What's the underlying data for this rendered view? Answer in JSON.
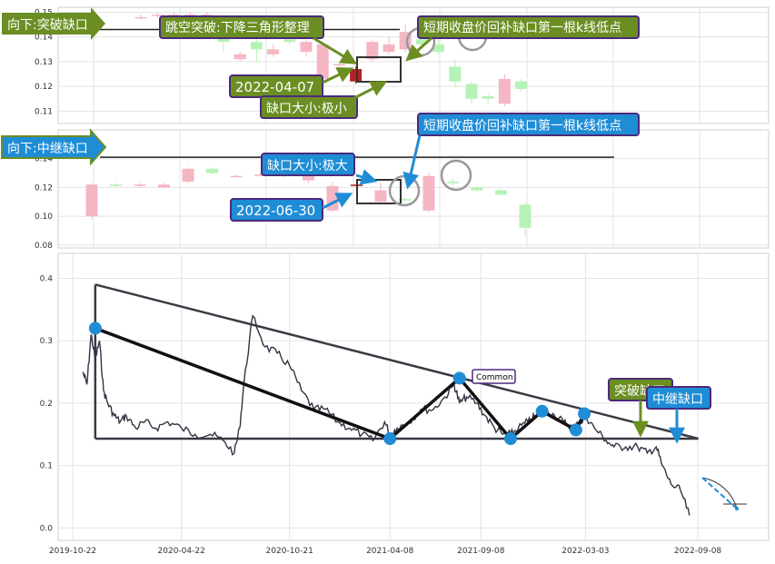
{
  "colors": {
    "up": "#f4b6c2",
    "down": "#b6f2b6",
    "gap_candle": "#b22222",
    "green_label": "#6b8e23",
    "blue_label": "#1f8dd6",
    "label_border": "#4b2a7a",
    "price_line": "#333344",
    "triangle": "#3a3a44",
    "pivot": "#1f8dd6"
  },
  "panels": {
    "top": {
      "banner": "向下:突破缺口",
      "annotations": {
        "pattern": "跳空突破:下降三角形整理",
        "date": "2022-04-07",
        "gap_size": "缺口大小:极小",
        "fill": "短期收盘价回补缺口第一根k线低点"
      }
    },
    "middle": {
      "banner": "向下:中继缺口",
      "annotations": {
        "gap_size": "缺口大小:极大",
        "date": "2022-06-30",
        "fill": "短期收盘价回补缺口第一根k线低点"
      }
    },
    "main": {
      "annotations": {
        "common": "Common",
        "breakaway": "突破缺口",
        "runaway": "中继缺口"
      }
    }
  },
  "chart_data": [
    {
      "type": "candlestick",
      "id": "top",
      "ylim": [
        0.105,
        0.152
      ],
      "yticks": [
        0.11,
        0.12,
        0.13,
        0.14,
        0.15
      ],
      "reference_line": 0.143,
      "candles": [
        {
          "o": 0.148,
          "c": 0.148,
          "h": 0.149,
          "l": 0.147
        },
        {
          "o": 0.149,
          "c": 0.149,
          "h": 0.15,
          "l": 0.148
        },
        {
          "o": 0.149,
          "c": 0.149,
          "h": 0.15,
          "l": 0.148
        },
        {
          "o": 0.149,
          "c": 0.149,
          "h": 0.15,
          "l": 0.148
        },
        {
          "o": 0.149,
          "c": 0.149,
          "h": 0.15,
          "l": 0.148
        },
        {
          "o": 0.146,
          "c": 0.138,
          "h": 0.148,
          "l": 0.134
        },
        {
          "o": 0.131,
          "c": 0.133,
          "h": 0.134,
          "l": 0.13
        },
        {
          "o": 0.138,
          "c": 0.135,
          "h": 0.139,
          "l": 0.13
        },
        {
          "o": 0.133,
          "c": 0.135,
          "h": 0.137,
          "l": 0.132
        },
        {
          "o": 0.139,
          "c": 0.138,
          "h": 0.141,
          "l": 0.137
        },
        {
          "o": 0.134,
          "c": 0.138,
          "h": 0.139,
          "l": 0.132
        },
        {
          "o": 0.123,
          "c": 0.137,
          "h": 0.138,
          "l": 0.122
        },
        {
          "o": 0.129,
          "c": 0.129,
          "h": 0.13,
          "l": 0.128
        },
        {
          "o": 0.122,
          "c": 0.127,
          "h": 0.128,
          "l": 0.121,
          "gap": true
        },
        {
          "o": 0.131,
          "c": 0.138,
          "h": 0.139,
          "l": 0.13
        },
        {
          "o": 0.134,
          "c": 0.137,
          "h": 0.14,
          "l": 0.133
        },
        {
          "o": 0.135,
          "c": 0.142,
          "h": 0.145,
          "l": 0.134
        },
        {
          "o": 0.139,
          "c": 0.137,
          "h": 0.141,
          "l": 0.135
        },
        {
          "o": 0.137,
          "c": 0.134,
          "h": 0.139,
          "l": 0.133
        },
        {
          "o": 0.128,
          "c": 0.122,
          "h": 0.131,
          "l": 0.12
        },
        {
          "o": 0.121,
          "c": 0.115,
          "h": 0.122,
          "l": 0.113
        },
        {
          "o": 0.116,
          "c": 0.115,
          "h": 0.117,
          "l": 0.113
        },
        {
          "o": 0.113,
          "c": 0.123,
          "h": 0.125,
          "l": 0.112
        },
        {
          "o": 0.122,
          "c": 0.119,
          "h": 0.123,
          "l": 0.118
        }
      ]
    },
    {
      "type": "candlestick",
      "id": "middle",
      "ylim": [
        0.078,
        0.16
      ],
      "yticks": [
        0.08,
        0.1,
        0.12,
        0.14
      ],
      "reference_line": 0.141,
      "candles": [
        {
          "o": 0.1,
          "c": 0.122,
          "h": 0.123,
          "l": 0.098
        },
        {
          "o": 0.122,
          "c": 0.121,
          "h": 0.123,
          "l": 0.12
        },
        {
          "o": 0.121,
          "c": 0.122,
          "h": 0.123,
          "l": 0.12
        },
        {
          "o": 0.12,
          "c": 0.122,
          "h": 0.123,
          "l": 0.119
        },
        {
          "o": 0.124,
          "c": 0.133,
          "h": 0.134,
          "l": 0.123
        },
        {
          "o": 0.133,
          "c": 0.13,
          "h": 0.134,
          "l": 0.129
        },
        {
          "o": 0.128,
          "c": 0.128,
          "h": 0.129,
          "l": 0.127
        },
        {
          "o": 0.129,
          "c": 0.129,
          "h": 0.13,
          "l": 0.128
        },
        {
          "o": 0.13,
          "c": 0.128,
          "h": 0.131,
          "l": 0.127
        },
        {
          "o": 0.125,
          "c": 0.131,
          "h": 0.136,
          "l": 0.123
        },
        {
          "o": 0.104,
          "c": 0.121,
          "h": 0.124,
          "l": 0.103
        },
        {
          "o": 0.122,
          "c": 0.121,
          "h": 0.123,
          "l": 0.119,
          "gap": true
        },
        {
          "o": 0.11,
          "c": 0.118,
          "h": 0.124,
          "l": 0.108
        },
        {
          "o": 0.112,
          "c": 0.111,
          "h": 0.113,
          "l": 0.11
        },
        {
          "o": 0.104,
          "c": 0.128,
          "h": 0.13,
          "l": 0.103
        },
        {
          "o": 0.124,
          "c": 0.123,
          "h": 0.126,
          "l": 0.121
        },
        {
          "o": 0.12,
          "c": 0.118,
          "h": 0.121,
          "l": 0.117
        },
        {
          "o": 0.118,
          "c": 0.115,
          "h": 0.119,
          "l": 0.114
        },
        {
          "o": 0.108,
          "c": 0.092,
          "h": 0.109,
          "l": 0.086
        }
      ]
    },
    {
      "type": "line",
      "id": "main",
      "x": [
        "2019-11-08",
        "2019-11-15",
        "2019-11-22",
        "2019-11-29",
        "2019-12-06",
        "2019-12-13",
        "2019-12-20",
        "2019-12-31",
        "2020-01-10",
        "2020-01-20",
        "2020-02-05",
        "2020-02-20",
        "2020-03-10",
        "2020-03-30",
        "2020-04-22",
        "2020-05-15",
        "2020-06-10",
        "2020-07-01",
        "2020-07-20",
        "2020-07-29",
        "2020-08-05",
        "2020-08-20",
        "2020-09-10",
        "2020-09-30",
        "2020-10-21",
        "2020-11-10",
        "2020-12-01",
        "2020-12-20",
        "2021-01-10",
        "2021-01-30",
        "2021-02-20",
        "2021-03-10",
        "2021-03-30",
        "2021-04-08",
        "2021-04-20",
        "2021-05-10",
        "2021-05-30",
        "2021-06-20",
        "2021-07-10",
        "2021-07-25",
        "2021-08-03",
        "2021-08-15",
        "2021-09-01",
        "2021-09-15",
        "2021-10-01",
        "2021-10-15",
        "2021-10-28",
        "2021-11-10",
        "2021-11-26",
        "2021-12-10",
        "2021-12-25",
        "2022-01-10",
        "2022-01-25",
        "2022-02-10",
        "2022-02-24",
        "2022-03-03",
        "2022-03-18",
        "2022-04-07",
        "2022-04-20",
        "2022-05-10",
        "2022-05-30",
        "2022-06-15",
        "2022-06-30",
        "2022-07-10",
        "2022-07-25",
        "2022-08-10",
        "2022-08-25"
      ],
      "y": [
        0.25,
        0.23,
        0.31,
        0.27,
        0.3,
        0.22,
        0.2,
        0.18,
        0.17,
        0.18,
        0.16,
        0.17,
        0.16,
        0.17,
        0.16,
        0.15,
        0.15,
        0.14,
        0.12,
        0.16,
        0.23,
        0.34,
        0.29,
        0.28,
        0.26,
        0.22,
        0.19,
        0.19,
        0.17,
        0.16,
        0.15,
        0.14,
        0.17,
        0.15,
        0.16,
        0.17,
        0.19,
        0.19,
        0.21,
        0.23,
        0.2,
        0.21,
        0.2,
        0.18,
        0.16,
        0.15,
        0.15,
        0.16,
        0.17,
        0.18,
        0.19,
        0.18,
        0.17,
        0.16,
        0.17,
        0.18,
        0.16,
        0.14,
        0.13,
        0.13,
        0.13,
        0.12,
        0.13,
        0.1,
        0.07,
        0.06,
        0.02
      ],
      "triangle": {
        "start": "2019-11-29",
        "end": "2022-07-25",
        "top": 0.39,
        "bottom": 0.143
      },
      "pivots": [
        {
          "x": "2019-11-29",
          "y": 0.32
        },
        {
          "x": "2021-04-08",
          "y": 0.143
        },
        {
          "x": "2021-08-03",
          "y": 0.24
        },
        {
          "x": "2021-10-28",
          "y": 0.143
        },
        {
          "x": "2021-12-20",
          "y": 0.187
        },
        {
          "x": "2022-02-15",
          "y": 0.157
        },
        {
          "x": "2022-03-01",
          "y": 0.183
        }
      ],
      "xticks": [
        "2019-10-22",
        "2020-04-22",
        "2020-10-21",
        "2021-04-08",
        "2021-09-08",
        "2022-03-03",
        "2022-09-08"
      ],
      "yticks": [
        0.0,
        0.1,
        0.2,
        0.3,
        0.4
      ],
      "ylim": [
        -0.02,
        0.44
      ]
    }
  ]
}
